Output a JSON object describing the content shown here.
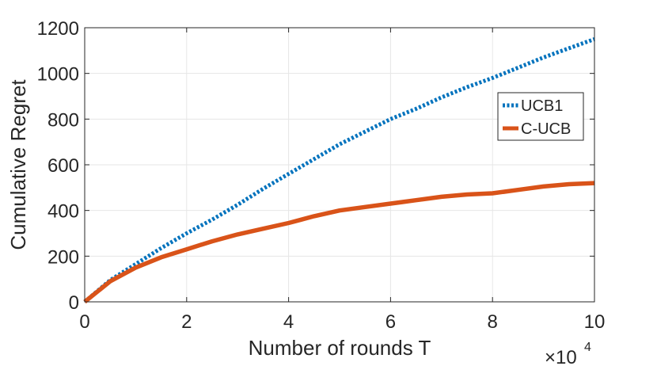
{
  "chart_data": {
    "type": "line",
    "xlabel": "Number of rounds T",
    "ylabel": "Cumulative Regret",
    "x_exponent_base": "×10",
    "x_exponent_power": "4",
    "xlim": [
      0,
      10
    ],
    "ylim": [
      0,
      1200
    ],
    "xticks": [
      0,
      2,
      4,
      6,
      8,
      10
    ],
    "yticks": [
      0,
      200,
      400,
      600,
      800,
      1000,
      1200
    ],
    "grid": true,
    "legend_position": "upper-right",
    "series": [
      {
        "name": "UCB1",
        "color": "#0072bd",
        "line_style": "dotted",
        "x": [
          0,
          0.5,
          1,
          1.5,
          2,
          2.5,
          3,
          3.5,
          4,
          4.5,
          5,
          5.5,
          6,
          6.5,
          7,
          7.5,
          8,
          8.5,
          9,
          9.5,
          10
        ],
        "y": [
          0,
          95,
          165,
          235,
          300,
          360,
          425,
          495,
          560,
          625,
          690,
          745,
          800,
          845,
          895,
          940,
          980,
          1025,
          1070,
          1110,
          1150
        ]
      },
      {
        "name": "C-UCB",
        "color": "#d95319",
        "line_style": "solid",
        "x": [
          0,
          0.5,
          1,
          1.5,
          2,
          2.5,
          3,
          3.5,
          4,
          4.5,
          5,
          5.5,
          6,
          6.5,
          7,
          7.5,
          8,
          8.5,
          9,
          9.5,
          10
        ],
        "y": [
          0,
          90,
          150,
          195,
          230,
          265,
          295,
          320,
          345,
          375,
          400,
          415,
          430,
          445,
          460,
          470,
          475,
          490,
          505,
          515,
          520
        ]
      }
    ]
  }
}
